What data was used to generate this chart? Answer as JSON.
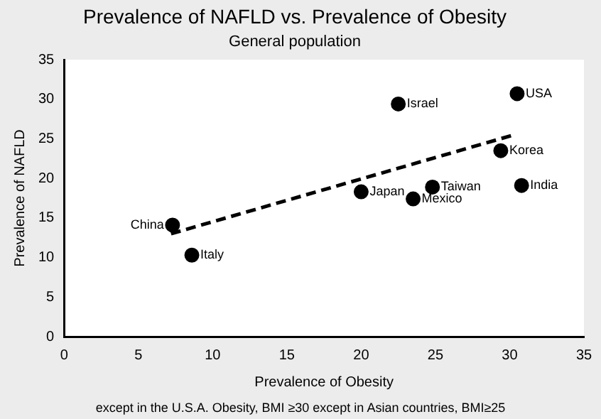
{
  "chart_data": {
    "type": "scatter",
    "title": "Prevalence of NAFLD vs. Prevalence of Obesity",
    "subtitle": "General population",
    "xlabel": "Prevalence of Obesity",
    "ylabel": "Prevalence of NAFLD",
    "series": [
      {
        "color": "#000000",
        "marker": "circle",
        "x": [
          30.5,
          22.5,
          29.4,
          30.8,
          24.8,
          23.5,
          20,
          7.3,
          8.6
        ],
        "values": [
          30.7,
          29.4,
          23.5,
          19.1,
          18.9,
          17.4,
          18.3,
          14.1,
          10.3
        ]
      },
      {
        "type": "line",
        "color": "#000000",
        "line_style": "dashed",
        "marker": "none",
        "x": [
          7.2,
          30.3
        ],
        "values": [
          13,
          25.5
        ]
      }
    ],
    "annotations": [
      {
        "text": "USA",
        "x": 30.5,
        "y": 30.7
      },
      {
        "text": "Israel",
        "x": 22.5,
        "y": 29.4
      },
      {
        "text": "Korea",
        "x": 29.4,
        "y": 23.5
      },
      {
        "text": "India",
        "x": 30.8,
        "y": 19.1
      },
      {
        "text": "Taiwan",
        "x": 24.8,
        "y": 18.9
      },
      {
        "text": "Mexico",
        "x": 23.5,
        "y": 17.4
      },
      {
        "text": "Japan",
        "x": 20,
        "y": 18.3
      },
      {
        "text": "China",
        "x": 7.3,
        "y": 14.1
      },
      {
        "text": "Italy",
        "x": 8.6,
        "y": 10.3
      },
      "except in the U.S.A. Obesity, BMI ≥30 except in Asian countries, BMI≥25"
    ],
    "xlim": [
      0,
      35
    ],
    "xticks": [
      0,
      5,
      10,
      15,
      20,
      25,
      30,
      35
    ],
    "ylim": [
      0,
      35
    ],
    "yticks": [
      0,
      5,
      10,
      15,
      20,
      25,
      30,
      35
    ],
    "grid": false,
    "legend": false
  }
}
